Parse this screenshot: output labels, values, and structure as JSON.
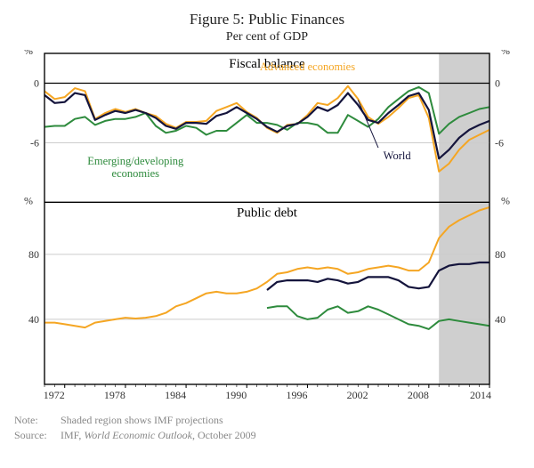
{
  "figure_title": "Figure 5: Public Finances",
  "figure_subtitle": "Per cent of GDP",
  "note_label": "Note:",
  "note_text": "Shaded region shows IMF projections",
  "source_label": "Source:",
  "source_text": "IMF, World Economic Outlook, October 2009",
  "x": {
    "min": 1970,
    "max": 2014,
    "ticks": [
      1972,
      1978,
      1984,
      1990,
      1996,
      2002,
      2008,
      2014
    ],
    "tick_fontsize": 12,
    "tick_color": "#333333"
  },
  "panel_top": {
    "title": "Fiscal balance",
    "title_fontsize": 15,
    "y_unit": "%",
    "ylim": [
      -12,
      3
    ],
    "yticks": [
      -6,
      0
    ],
    "series": {
      "advanced": {
        "color": "#f5a623",
        "width": 2,
        "label": "Advanced economies",
        "label_pos": {
          "x": 1996,
          "y": 1.3
        },
        "points": [
          [
            1970,
            -0.8
          ],
          [
            1971,
            -1.6
          ],
          [
            1972,
            -1.4
          ],
          [
            1973,
            -0.5
          ],
          [
            1974,
            -0.8
          ],
          [
            1975,
            -3.6
          ],
          [
            1976,
            -3.0
          ],
          [
            1977,
            -2.6
          ],
          [
            1978,
            -2.9
          ],
          [
            1979,
            -2.6
          ],
          [
            1980,
            -3.0
          ],
          [
            1981,
            -3.3
          ],
          [
            1982,
            -4.1
          ],
          [
            1983,
            -4.5
          ],
          [
            1984,
            -3.9
          ],
          [
            1985,
            -3.9
          ],
          [
            1986,
            -3.8
          ],
          [
            1987,
            -2.8
          ],
          [
            1988,
            -2.4
          ],
          [
            1989,
            -2.0
          ],
          [
            1990,
            -2.9
          ],
          [
            1991,
            -3.5
          ],
          [
            1992,
            -4.5
          ],
          [
            1993,
            -5.0
          ],
          [
            1994,
            -4.2
          ],
          [
            1995,
            -4.1
          ],
          [
            1996,
            -3.2
          ],
          [
            1997,
            -2.0
          ],
          [
            1998,
            -2.2
          ],
          [
            1999,
            -1.5
          ],
          [
            2000,
            -0.3
          ],
          [
            2001,
            -1.6
          ],
          [
            2002,
            -3.4
          ],
          [
            2003,
            -4.1
          ],
          [
            2004,
            -3.4
          ],
          [
            2005,
            -2.5
          ],
          [
            2006,
            -1.5
          ],
          [
            2007,
            -1.2
          ],
          [
            2008,
            -3.5
          ],
          [
            2009,
            -8.9
          ],
          [
            2010,
            -8.1
          ],
          [
            2011,
            -6.7
          ],
          [
            2012,
            -5.7
          ],
          [
            2013,
            -5.2
          ],
          [
            2014,
            -4.7
          ]
        ]
      },
      "emerging": {
        "color": "#2e8b3d",
        "width": 2,
        "label": "Emerging/developing economies",
        "label_pos": {
          "x": 1979,
          "y": -8.2
        },
        "points": [
          [
            1970,
            -4.4
          ],
          [
            1971,
            -4.3
          ],
          [
            1972,
            -4.3
          ],
          [
            1973,
            -3.6
          ],
          [
            1974,
            -3.4
          ],
          [
            1975,
            -4.2
          ],
          [
            1976,
            -3.8
          ],
          [
            1977,
            -3.6
          ],
          [
            1978,
            -3.6
          ],
          [
            1979,
            -3.4
          ],
          [
            1980,
            -3.0
          ],
          [
            1981,
            -4.3
          ],
          [
            1982,
            -5.0
          ],
          [
            1983,
            -4.8
          ],
          [
            1984,
            -4.3
          ],
          [
            1985,
            -4.5
          ],
          [
            1986,
            -5.2
          ],
          [
            1987,
            -4.8
          ],
          [
            1988,
            -4.8
          ],
          [
            1989,
            -4.0
          ],
          [
            1990,
            -3.2
          ],
          [
            1991,
            -4.0
          ],
          [
            1992,
            -4.0
          ],
          [
            1993,
            -4.2
          ],
          [
            1994,
            -4.7
          ],
          [
            1995,
            -4.0
          ],
          [
            1996,
            -4.0
          ],
          [
            1997,
            -4.2
          ],
          [
            1998,
            -5.0
          ],
          [
            1999,
            -5.0
          ],
          [
            2000,
            -3.2
          ],
          [
            2001,
            -3.8
          ],
          [
            2002,
            -4.4
          ],
          [
            2003,
            -3.6
          ],
          [
            2004,
            -2.4
          ],
          [
            2005,
            -1.6
          ],
          [
            2006,
            -0.8
          ],
          [
            2007,
            -0.4
          ],
          [
            2008,
            -1.0
          ],
          [
            2009,
            -5.1
          ],
          [
            2010,
            -4.1
          ],
          [
            2011,
            -3.4
          ],
          [
            2012,
            -3.0
          ],
          [
            2013,
            -2.6
          ],
          [
            2014,
            -2.4
          ]
        ]
      },
      "world": {
        "color": "#14143c",
        "width": 2.2,
        "label": "World",
        "label_pos": {
          "x": 2003.5,
          "y": -7.3
        },
        "leader_from": {
          "x": 2003,
          "y": -6.5
        },
        "leader_to": {
          "x": 2001,
          "y": -1.7
        },
        "points": [
          [
            1970,
            -1.2
          ],
          [
            1971,
            -2.0
          ],
          [
            1972,
            -1.9
          ],
          [
            1973,
            -1.0
          ],
          [
            1974,
            -1.2
          ],
          [
            1975,
            -3.7
          ],
          [
            1976,
            -3.2
          ],
          [
            1977,
            -2.8
          ],
          [
            1978,
            -3.0
          ],
          [
            1979,
            -2.7
          ],
          [
            1980,
            -3.0
          ],
          [
            1981,
            -3.5
          ],
          [
            1982,
            -4.3
          ],
          [
            1983,
            -4.6
          ],
          [
            1984,
            -4.0
          ],
          [
            1985,
            -4.0
          ],
          [
            1986,
            -4.1
          ],
          [
            1987,
            -3.3
          ],
          [
            1988,
            -3.0
          ],
          [
            1989,
            -2.4
          ],
          [
            1990,
            -3.0
          ],
          [
            1991,
            -3.6
          ],
          [
            1992,
            -4.4
          ],
          [
            1993,
            -4.9
          ],
          [
            1994,
            -4.3
          ],
          [
            1995,
            -4.1
          ],
          [
            1996,
            -3.4
          ],
          [
            1997,
            -2.4
          ],
          [
            1998,
            -2.8
          ],
          [
            1999,
            -2.2
          ],
          [
            2000,
            -1.0
          ],
          [
            2001,
            -2.2
          ],
          [
            2002,
            -3.7
          ],
          [
            2003,
            -4.0
          ],
          [
            2004,
            -3.0
          ],
          [
            2005,
            -2.2
          ],
          [
            2006,
            -1.3
          ],
          [
            2007,
            -1.0
          ],
          [
            2008,
            -2.7
          ],
          [
            2009,
            -7.6
          ],
          [
            2010,
            -6.7
          ],
          [
            2011,
            -5.5
          ],
          [
            2012,
            -4.7
          ],
          [
            2013,
            -4.2
          ],
          [
            2014,
            -3.8
          ]
        ]
      }
    }
  },
  "panel_bottom": {
    "title": "Public debt",
    "title_fontsize": 15,
    "y_unit": "%",
    "ylim": [
      0,
      112
    ],
    "yticks": [
      40,
      80
    ],
    "series": {
      "advanced": {
        "color": "#f5a623",
        "width": 2,
        "points": [
          [
            1970,
            38
          ],
          [
            1971,
            38
          ],
          [
            1972,
            37
          ],
          [
            1973,
            36
          ],
          [
            1974,
            35
          ],
          [
            1975,
            38
          ],
          [
            1976,
            39
          ],
          [
            1977,
            40
          ],
          [
            1978,
            41
          ],
          [
            1979,
            40.5
          ],
          [
            1980,
            41
          ],
          [
            1981,
            42
          ],
          [
            1982,
            44
          ],
          [
            1983,
            48
          ],
          [
            1984,
            50
          ],
          [
            1985,
            53
          ],
          [
            1986,
            56
          ],
          [
            1987,
            57
          ],
          [
            1988,
            56
          ],
          [
            1989,
            56
          ],
          [
            1990,
            57
          ],
          [
            1991,
            59
          ],
          [
            1992,
            63
          ],
          [
            1993,
            68
          ],
          [
            1994,
            69
          ],
          [
            1995,
            71
          ],
          [
            1996,
            72
          ],
          [
            1997,
            71
          ],
          [
            1998,
            72
          ],
          [
            1999,
            71
          ],
          [
            2000,
            68
          ],
          [
            2001,
            69
          ],
          [
            2002,
            71
          ],
          [
            2003,
            72
          ],
          [
            2004,
            73
          ],
          [
            2005,
            72
          ],
          [
            2006,
            70
          ],
          [
            2007,
            70
          ],
          [
            2008,
            75
          ],
          [
            2009,
            90
          ],
          [
            2010,
            97
          ],
          [
            2011,
            101
          ],
          [
            2012,
            104
          ],
          [
            2013,
            107
          ],
          [
            2014,
            109
          ]
        ]
      },
      "emerging": {
        "color": "#2e8b3d",
        "width": 2,
        "points": [
          [
            1992,
            47
          ],
          [
            1993,
            48
          ],
          [
            1994,
            48
          ],
          [
            1995,
            42
          ],
          [
            1996,
            40
          ],
          [
            1997,
            41
          ],
          [
            1998,
            46
          ],
          [
            1999,
            48
          ],
          [
            2000,
            44
          ],
          [
            2001,
            45
          ],
          [
            2002,
            48
          ],
          [
            2003,
            46
          ],
          [
            2004,
            43
          ],
          [
            2005,
            40
          ],
          [
            2006,
            37
          ],
          [
            2007,
            36
          ],
          [
            2008,
            34
          ],
          [
            2009,
            39
          ],
          [
            2010,
            40
          ],
          [
            2011,
            39
          ],
          [
            2012,
            38
          ],
          [
            2013,
            37
          ],
          [
            2014,
            36
          ]
        ]
      },
      "world": {
        "color": "#14143c",
        "width": 2.2,
        "points": [
          [
            1992,
            58
          ],
          [
            1993,
            63
          ],
          [
            1994,
            64
          ],
          [
            1995,
            64
          ],
          [
            1996,
            64
          ],
          [
            1997,
            63
          ],
          [
            1998,
            65
          ],
          [
            1999,
            64
          ],
          [
            2000,
            62
          ],
          [
            2001,
            63
          ],
          [
            2002,
            66
          ],
          [
            2003,
            66
          ],
          [
            2004,
            66
          ],
          [
            2005,
            64
          ],
          [
            2006,
            60
          ],
          [
            2007,
            59
          ],
          [
            2008,
            60
          ],
          [
            2009,
            70
          ],
          [
            2010,
            73
          ],
          [
            2011,
            74
          ],
          [
            2012,
            74
          ],
          [
            2013,
            75
          ],
          [
            2014,
            75
          ]
        ]
      }
    }
  },
  "style": {
    "bg": "#ffffff",
    "axis_color": "#000000",
    "grid_color": "#cccccc",
    "shade_color": "#cfcfcf",
    "shade_from": 2009,
    "shade_to": 2014,
    "label_color": "#333333",
    "panel_title_color": "#000000"
  }
}
